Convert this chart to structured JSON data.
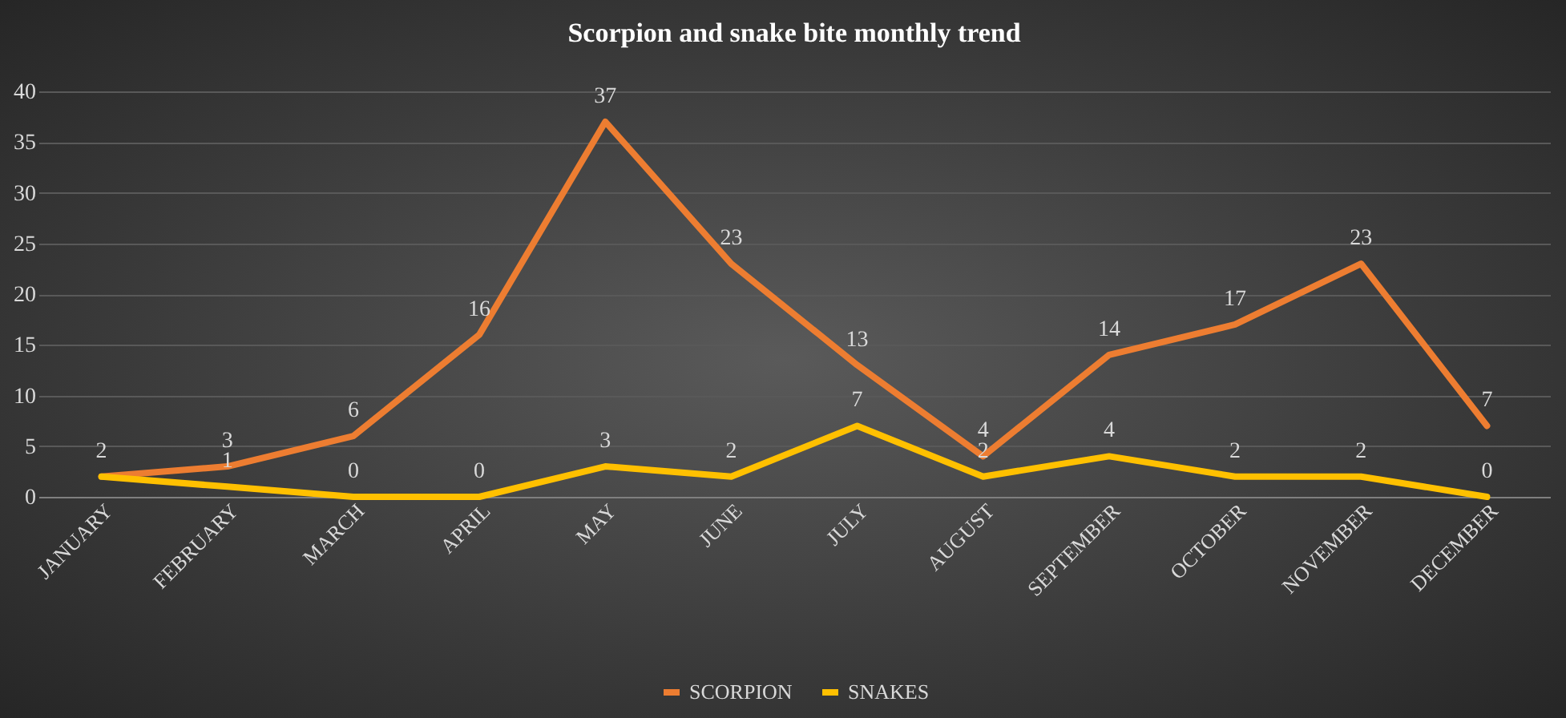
{
  "chart_data": {
    "type": "line",
    "title": "Scorpion and snake bite monthly trend",
    "categories": [
      "JANUARY",
      "FEBRUARY",
      "MARCH",
      "APRIL",
      "MAY",
      "JUNE",
      "JULY",
      "AUGUST",
      "SEPTEMBER",
      "OCTOBER",
      "NOVEMBER",
      "DECEMBER"
    ],
    "series": [
      {
        "name": "SCORPION",
        "color": "#ed7d31",
        "values": [
          2,
          3,
          6,
          16,
          37,
          23,
          13,
          4,
          14,
          17,
          23,
          7
        ],
        "value_labels": [
          "2",
          "3",
          "6",
          "16",
          "37",
          "23",
          "13",
          "4",
          "14",
          "17",
          "23",
          "7"
        ]
      },
      {
        "name": "SNAKES",
        "color": "#ffc000",
        "values": [
          2,
          1,
          0,
          0,
          3,
          2,
          7,
          2,
          4,
          2,
          2,
          0
        ],
        "value_labels": [
          null,
          "1",
          "0",
          "0",
          "3",
          "2",
          "7",
          "2",
          "4",
          "2",
          "2",
          "0"
        ]
      }
    ],
    "ylim": [
      0,
      40
    ],
    "yticks": [
      0,
      5,
      10,
      15,
      20,
      25,
      30,
      35,
      40
    ],
    "grid": "y",
    "legend": "bottom"
  }
}
